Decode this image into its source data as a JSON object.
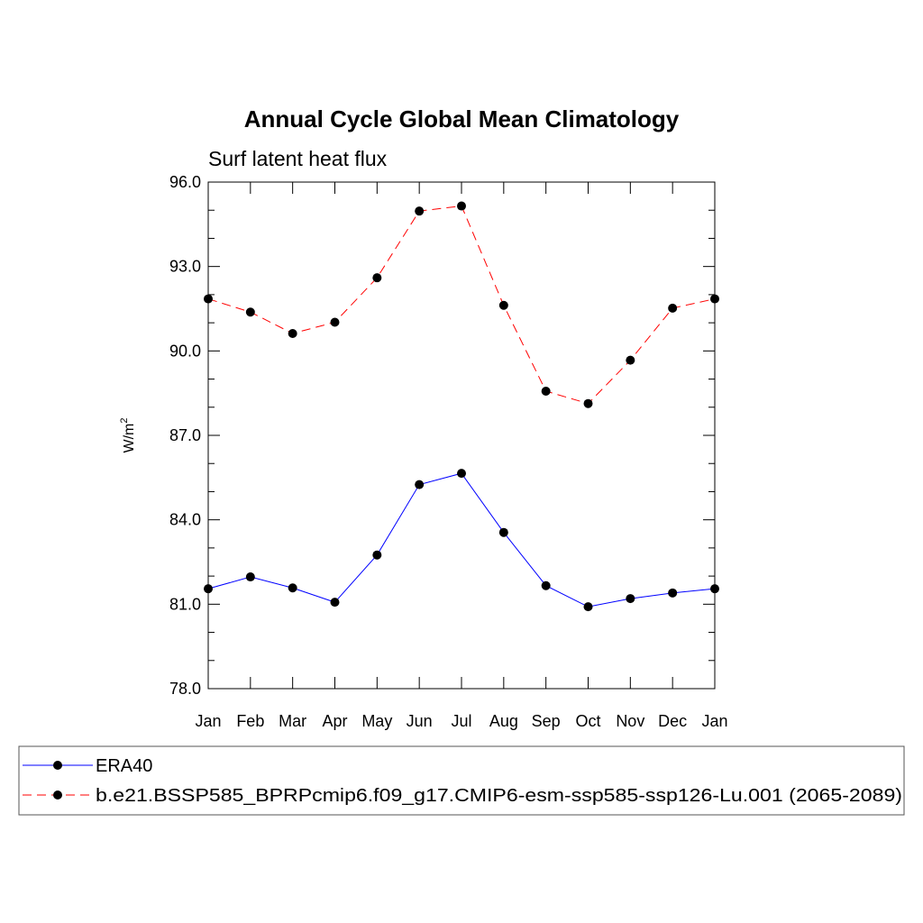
{
  "chart_data": {
    "type": "line",
    "title": "Annual Cycle Global Mean Climatology",
    "subtitle": "Surf latent heat flux",
    "xlabel": "",
    "ylabel_main": "W/m",
    "ylabel_sup": "2",
    "categories": [
      "Jan",
      "Feb",
      "Mar",
      "Apr",
      "May",
      "Jun",
      "Jul",
      "Aug",
      "Sep",
      "Oct",
      "Nov",
      "Dec",
      "Jan"
    ],
    "ylim": [
      78.0,
      96.0
    ],
    "yticks": [
      78.0,
      81.0,
      84.0,
      87.0,
      90.0,
      93.0,
      96.0
    ],
    "ytick_labels": [
      "78.0",
      "81.0",
      "84.0",
      "87.0",
      "90.0",
      "93.0",
      "96.0"
    ],
    "series": [
      {
        "name": "ERA40",
        "color": "#0000ff",
        "dash": "solid",
        "values": [
          81.55,
          81.97,
          81.58,
          81.07,
          82.75,
          85.25,
          85.65,
          83.55,
          81.66,
          80.91,
          81.2,
          81.4,
          81.55
        ]
      },
      {
        "name": "b.e21.BSSP585_BPRPcmip6.f09_g17.CMIP6-esm-ssp585-ssp126-Lu.001 (2065-2089)",
        "color": "#ff0000",
        "dash": "dashed",
        "values": [
          91.85,
          91.38,
          90.62,
          91.02,
          92.6,
          94.97,
          95.15,
          91.62,
          88.57,
          88.13,
          89.67,
          91.52,
          91.85
        ]
      }
    ],
    "marker_color": "#000000",
    "legend_position": "bottom"
  }
}
